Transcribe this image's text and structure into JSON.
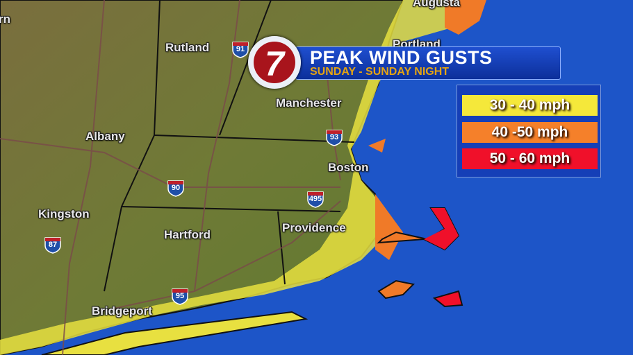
{
  "title": {
    "main": "PEAK WIND GUSTS",
    "sub": "SUNDAY - SUNDAY NIGHT"
  },
  "logo": {
    "text": "7",
    "color": "#a8141c"
  },
  "legend": [
    {
      "label": "30 - 40 mph",
      "color": "#f5e83a"
    },
    {
      "label": "40 -50 mph",
      "color": "#f5802a"
    },
    {
      "label": "50 - 60 mph",
      "color": "#f0102a"
    }
  ],
  "cities": [
    {
      "name": "Augusta"
    },
    {
      "name": "Portland"
    },
    {
      "name": "Rutland"
    },
    {
      "name": "Manchester"
    },
    {
      "name": "Albany"
    },
    {
      "name": "Boston"
    },
    {
      "name": "Kingston"
    },
    {
      "name": "Hartford"
    },
    {
      "name": "Providence"
    },
    {
      "name": "Bridgeport"
    },
    {
      "name": "rn"
    }
  ],
  "highways": [
    "91",
    "93",
    "90",
    "495",
    "87",
    "95"
  ],
  "colors": {
    "ocean": "#1d55c8",
    "land": "#6e7a34"
  }
}
